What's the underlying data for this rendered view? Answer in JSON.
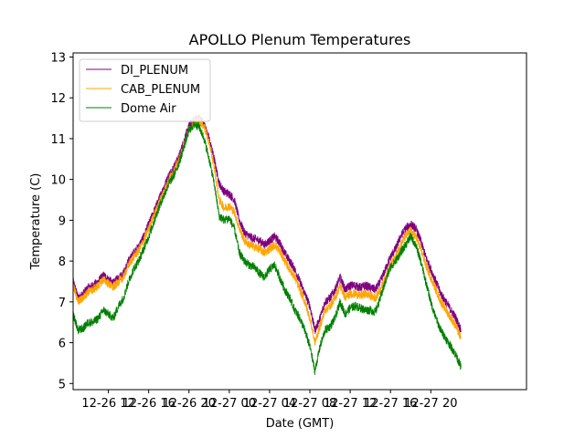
{
  "chart_data": {
    "type": "line",
    "title": "APOLLO Plenum Temperatures",
    "xlabel": "Date (GMT)",
    "ylabel": "Temperature (C)",
    "xlim_hours": [
      8.5,
      53.5
    ],
    "ylim": [
      4.85,
      13.1
    ],
    "x_unit": "hours since 12-26 00:00 GMT",
    "x_ticks": [
      {
        "hour": 12,
        "label": "12-26 12"
      },
      {
        "hour": 16,
        "label": "12-26 16"
      },
      {
        "hour": 20,
        "label": "12-26 20"
      },
      {
        "hour": 24,
        "label": "12-27 00"
      },
      {
        "hour": 28,
        "label": "12-27 04"
      },
      {
        "hour": 32,
        "label": "12-27 08"
      },
      {
        "hour": 36,
        "label": "12-27 12"
      },
      {
        "hour": 40,
        "label": "12-27 16"
      },
      {
        "hour": 44,
        "label": "12-27 20"
      }
    ],
    "y_ticks": [
      5,
      6,
      7,
      8,
      9,
      10,
      11,
      12,
      13
    ],
    "legend": {
      "location": "upper left"
    },
    "grid": false,
    "series": [
      {
        "name": "DI_PLENUM",
        "color": "#800080",
        "points": [
          [
            8.5,
            7.5
          ],
          [
            9.0,
            7.1
          ],
          [
            9.5,
            7.2
          ],
          [
            10.0,
            7.35
          ],
          [
            10.5,
            7.4
          ],
          [
            11.0,
            7.5
          ],
          [
            11.5,
            7.65
          ],
          [
            12.0,
            7.55
          ],
          [
            12.5,
            7.45
          ],
          [
            13.0,
            7.6
          ],
          [
            13.5,
            7.7
          ],
          [
            14.0,
            8.0
          ],
          [
            14.5,
            8.2
          ],
          [
            15.0,
            8.35
          ],
          [
            15.5,
            8.6
          ],
          [
            16.0,
            8.9
          ],
          [
            16.5,
            9.2
          ],
          [
            17.0,
            9.5
          ],
          [
            17.5,
            9.8
          ],
          [
            18.0,
            10.1
          ],
          [
            18.5,
            10.3
          ],
          [
            19.0,
            10.55
          ],
          [
            19.5,
            10.95
          ],
          [
            20.0,
            11.3
          ],
          [
            20.5,
            11.45
          ],
          [
            21.0,
            11.5
          ],
          [
            21.5,
            11.35
          ],
          [
            22.0,
            11.0
          ],
          [
            22.5,
            10.5
          ],
          [
            23.0,
            9.9
          ],
          [
            23.5,
            9.7
          ],
          [
            24.0,
            9.65
          ],
          [
            24.5,
            9.5
          ],
          [
            25.0,
            9.0
          ],
          [
            25.5,
            8.7
          ],
          [
            26.0,
            8.6
          ],
          [
            26.5,
            8.55
          ],
          [
            27.0,
            8.5
          ],
          [
            27.5,
            8.4
          ],
          [
            28.0,
            8.5
          ],
          [
            28.5,
            8.6
          ],
          [
            29.0,
            8.45
          ],
          [
            29.5,
            8.2
          ],
          [
            30.0,
            8.0
          ],
          [
            30.5,
            7.8
          ],
          [
            31.0,
            7.5
          ],
          [
            31.5,
            7.2
          ],
          [
            32.0,
            6.9
          ],
          [
            32.5,
            6.3
          ],
          [
            33.0,
            6.6
          ],
          [
            33.5,
            7.0
          ],
          [
            34.0,
            7.1
          ],
          [
            34.5,
            7.3
          ],
          [
            35.0,
            7.6
          ],
          [
            35.5,
            7.3
          ],
          [
            36.0,
            7.4
          ],
          [
            36.5,
            7.4
          ],
          [
            37.0,
            7.35
          ],
          [
            37.5,
            7.4
          ],
          [
            38.0,
            7.35
          ],
          [
            38.5,
            7.3
          ],
          [
            39.0,
            7.5
          ],
          [
            39.5,
            7.8
          ],
          [
            40.0,
            8.1
          ],
          [
            40.5,
            8.3
          ],
          [
            41.0,
            8.6
          ],
          [
            41.5,
            8.8
          ],
          [
            42.0,
            8.9
          ],
          [
            42.5,
            8.8
          ],
          [
            43.0,
            8.5
          ],
          [
            43.5,
            8.1
          ],
          [
            44.0,
            7.8
          ],
          [
            44.5,
            7.5
          ],
          [
            45.0,
            7.2
          ],
          [
            45.5,
            7.0
          ],
          [
            46.0,
            6.8
          ],
          [
            46.5,
            6.6
          ],
          [
            47.0,
            6.3
          ]
        ]
      },
      {
        "name": "CAB_PLENUM",
        "color": "#FFA500",
        "points": [
          [
            8.5,
            7.4
          ],
          [
            9.0,
            7.0
          ],
          [
            9.5,
            7.1
          ],
          [
            10.0,
            7.25
          ],
          [
            10.5,
            7.3
          ],
          [
            11.0,
            7.4
          ],
          [
            11.5,
            7.55
          ],
          [
            12.0,
            7.45
          ],
          [
            12.5,
            7.35
          ],
          [
            13.0,
            7.5
          ],
          [
            13.5,
            7.6
          ],
          [
            14.0,
            7.9
          ],
          [
            14.5,
            8.1
          ],
          [
            15.0,
            8.25
          ],
          [
            15.5,
            8.5
          ],
          [
            16.0,
            8.8
          ],
          [
            16.5,
            9.1
          ],
          [
            17.0,
            9.4
          ],
          [
            17.5,
            9.7
          ],
          [
            18.0,
            10.0
          ],
          [
            18.5,
            10.2
          ],
          [
            19.0,
            10.45
          ],
          [
            19.5,
            10.85
          ],
          [
            20.0,
            11.2
          ],
          [
            20.5,
            11.4
          ],
          [
            21.0,
            11.45
          ],
          [
            21.5,
            11.3
          ],
          [
            22.0,
            10.9
          ],
          [
            22.5,
            10.3
          ],
          [
            23.0,
            9.5
          ],
          [
            23.5,
            9.3
          ],
          [
            24.0,
            9.35
          ],
          [
            24.5,
            9.2
          ],
          [
            25.0,
            8.8
          ],
          [
            25.5,
            8.5
          ],
          [
            26.0,
            8.4
          ],
          [
            26.5,
            8.35
          ],
          [
            27.0,
            8.3
          ],
          [
            27.5,
            8.2
          ],
          [
            28.0,
            8.3
          ],
          [
            28.5,
            8.4
          ],
          [
            29.0,
            8.25
          ],
          [
            29.5,
            8.0
          ],
          [
            30.0,
            7.8
          ],
          [
            30.5,
            7.6
          ],
          [
            31.0,
            7.3
          ],
          [
            31.5,
            7.0
          ],
          [
            32.0,
            6.6
          ],
          [
            32.5,
            6.0
          ],
          [
            33.0,
            6.4
          ],
          [
            33.5,
            6.8
          ],
          [
            34.0,
            6.9
          ],
          [
            34.5,
            7.1
          ],
          [
            35.0,
            7.4
          ],
          [
            35.5,
            7.1
          ],
          [
            36.0,
            7.2
          ],
          [
            36.5,
            7.2
          ],
          [
            37.0,
            7.15
          ],
          [
            37.5,
            7.2
          ],
          [
            38.0,
            7.15
          ],
          [
            38.5,
            7.1
          ],
          [
            39.0,
            7.3
          ],
          [
            39.5,
            7.6
          ],
          [
            40.0,
            7.9
          ],
          [
            40.5,
            8.1
          ],
          [
            41.0,
            8.4
          ],
          [
            41.5,
            8.6
          ],
          [
            42.0,
            8.75
          ],
          [
            42.5,
            8.6
          ],
          [
            43.0,
            8.3
          ],
          [
            43.5,
            7.9
          ],
          [
            44.0,
            7.6
          ],
          [
            44.5,
            7.3
          ],
          [
            45.0,
            7.0
          ],
          [
            45.5,
            6.8
          ],
          [
            46.0,
            6.6
          ],
          [
            46.5,
            6.4
          ],
          [
            47.0,
            6.1
          ]
        ]
      },
      {
        "name": "Dome Air",
        "color": "#008000",
        "points": [
          [
            8.5,
            6.7
          ],
          [
            9.0,
            6.3
          ],
          [
            9.5,
            6.35
          ],
          [
            10.0,
            6.5
          ],
          [
            10.5,
            6.5
          ],
          [
            11.0,
            6.6
          ],
          [
            11.5,
            6.8
          ],
          [
            12.0,
            6.7
          ],
          [
            12.5,
            6.6
          ],
          [
            13.0,
            6.9
          ],
          [
            13.5,
            7.1
          ],
          [
            14.0,
            7.5
          ],
          [
            14.5,
            7.8
          ],
          [
            15.0,
            8.0
          ],
          [
            15.5,
            8.3
          ],
          [
            16.0,
            8.6
          ],
          [
            16.5,
            8.95
          ],
          [
            17.0,
            9.3
          ],
          [
            17.5,
            9.6
          ],
          [
            18.0,
            9.9
          ],
          [
            18.5,
            10.1
          ],
          [
            19.0,
            10.4
          ],
          [
            19.5,
            10.8
          ],
          [
            20.0,
            11.2
          ],
          [
            20.5,
            11.35
          ],
          [
            21.0,
            11.3
          ],
          [
            21.5,
            11.0
          ],
          [
            22.0,
            10.5
          ],
          [
            22.5,
            9.9
          ],
          [
            23.0,
            9.1
          ],
          [
            23.5,
            9.0
          ],
          [
            24.0,
            9.05
          ],
          [
            24.5,
            8.8
          ],
          [
            25.0,
            8.2
          ],
          [
            25.5,
            8.0
          ],
          [
            26.0,
            7.9
          ],
          [
            26.5,
            7.85
          ],
          [
            27.0,
            7.7
          ],
          [
            27.5,
            7.6
          ],
          [
            28.0,
            7.8
          ],
          [
            28.5,
            7.9
          ],
          [
            29.0,
            7.6
          ],
          [
            29.5,
            7.3
          ],
          [
            30.0,
            7.1
          ],
          [
            30.5,
            6.8
          ],
          [
            31.0,
            6.6
          ],
          [
            31.5,
            6.3
          ],
          [
            32.0,
            5.9
          ],
          [
            32.5,
            5.3
          ],
          [
            33.0,
            5.9
          ],
          [
            33.5,
            6.3
          ],
          [
            34.0,
            6.4
          ],
          [
            34.5,
            6.6
          ],
          [
            35.0,
            7.0
          ],
          [
            35.5,
            6.7
          ],
          [
            36.0,
            6.85
          ],
          [
            36.5,
            6.9
          ],
          [
            37.0,
            6.85
          ],
          [
            37.5,
            6.8
          ],
          [
            38.0,
            6.8
          ],
          [
            38.5,
            6.75
          ],
          [
            39.0,
            7.1
          ],
          [
            39.5,
            7.5
          ],
          [
            40.0,
            7.85
          ],
          [
            40.5,
            8.0
          ],
          [
            41.0,
            8.2
          ],
          [
            41.5,
            8.4
          ],
          [
            42.0,
            8.6
          ],
          [
            42.5,
            8.4
          ],
          [
            43.0,
            8.0
          ],
          [
            43.5,
            7.5
          ],
          [
            44.0,
            7.0
          ],
          [
            44.5,
            6.6
          ],
          [
            45.0,
            6.3
          ],
          [
            45.5,
            6.1
          ],
          [
            46.0,
            5.9
          ],
          [
            46.5,
            5.7
          ],
          [
            47.0,
            5.4
          ]
        ]
      }
    ]
  }
}
